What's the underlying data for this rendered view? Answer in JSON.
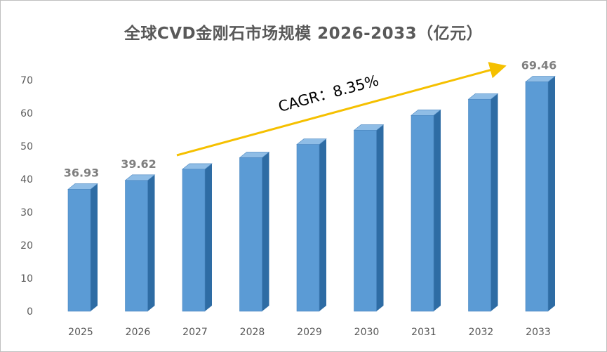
{
  "chart_data": {
    "type": "bar",
    "title": "全球CVD金刚石市场规模 2026-2033（亿元）",
    "categories": [
      "2025",
      "2026",
      "2027",
      "2028",
      "2029",
      "2030",
      "2031",
      "2032",
      "2033"
    ],
    "values": [
      36.93,
      39.62,
      43.0,
      46.5,
      50.5,
      54.8,
      59.3,
      64.2,
      69.46
    ],
    "data_labels": {
      "2025": "36.93",
      "2026": "39.62",
      "2033": "69.46"
    },
    "yticks": [
      0,
      10,
      20,
      30,
      40,
      50,
      60,
      70
    ],
    "ylim": [
      0,
      70
    ],
    "grid": false,
    "legend": "none",
    "annotation": "CAGR：8.35%",
    "colors": {
      "bar_front": "#5b9bd5",
      "bar_side": "#2e6ca4",
      "bar_top": "#8fbde6",
      "arrow": "#f5c000"
    }
  }
}
